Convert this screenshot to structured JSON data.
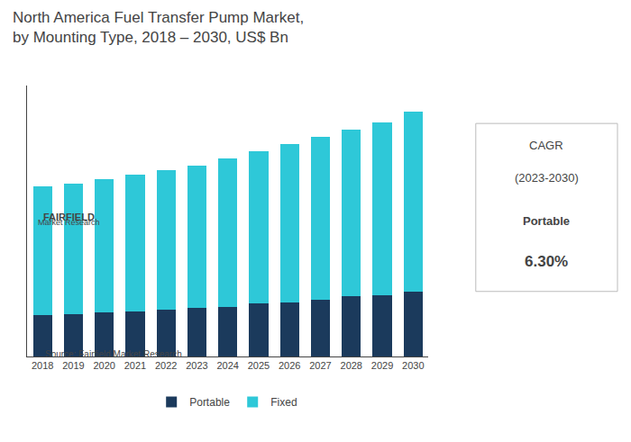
{
  "chart_data": {
    "type": "bar",
    "title": "North America Fuel Transfer Pump Market,\nby Mounting Type, 2018 – 2030, US$ Bn",
    "categories": [
      "2018",
      "2019",
      "2020",
      "2021",
      "2022",
      "2023",
      "2024",
      "2025",
      "2026",
      "2027",
      "2028",
      "2029",
      "2030"
    ],
    "series": [
      {
        "name": "Portable",
        "color": "#1b3a5c",
        "values": [
          0.28,
          0.29,
          0.3,
          0.31,
          0.32,
          0.33,
          0.34,
          0.36,
          0.37,
          0.39,
          0.41,
          0.42,
          0.44
        ]
      },
      {
        "name": "Fixed",
        "color": "#2ec8d8",
        "values": [
          0.88,
          0.89,
          0.91,
          0.93,
          0.95,
          0.97,
          1.01,
          1.04,
          1.08,
          1.11,
          1.14,
          1.18,
          1.23
        ]
      }
    ],
    "stacked": true,
    "ylim": [
      0,
      1.85
    ],
    "grid": false,
    "legend": "bottom",
    "tick_labels": "x",
    "annotations": [
      "CAGR",
      "(2023-2030)",
      "Portable",
      "6.30%",
      "FAIRFIELD",
      "Market Research",
      "Source: Fairfield Market Research"
    ]
  }
}
